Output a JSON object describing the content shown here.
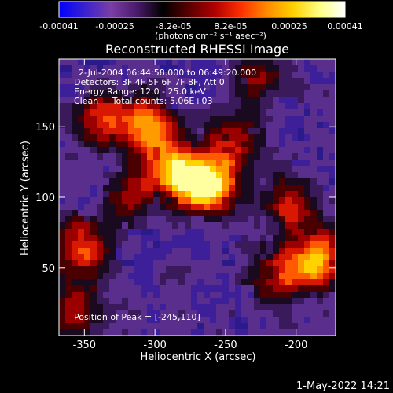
{
  "colorbar": {
    "colors": [
      "#0000ff",
      "#3a22cf",
      "#7a3ea5",
      "#4a1a6a",
      "#000000",
      "#5a0000",
      "#b00000",
      "#ff3000",
      "#ff8a00",
      "#ffd000",
      "#ffff80",
      "#ffffff"
    ],
    "tick_labels": [
      "-0.00041",
      "-0.00025",
      "-8.2e-05",
      "8.2e-05",
      "0.00025",
      "0.00041"
    ],
    "unit_label": "(photons cm⁻² s⁻¹ asec⁻²)"
  },
  "image_panel": {
    "header_lines": [
      "2-Jul-2004 06:44:58.000 to 06:49:20.000",
      "Detectors: 3F 4F 5F 6F 7F 8F, Att 0",
      "Energy Range: 12.0 - 25.0 keV",
      "Clean     Total counts: 5.06E+03"
    ],
    "peak_label": "Position of Peak = [-245,110]"
  },
  "footer": {
    "timestamp": "1-May-2022 14:21"
  },
  "chart_data": {
    "type": "heatmap",
    "title": "Reconstructed RHESSI Image",
    "xlabel": "Heliocentric X (arcsec)",
    "ylabel": "Heliocentric Y (arcsec)",
    "xlim": [
      -368,
      -172
    ],
    "ylim": [
      2,
      198
    ],
    "xticks": [
      -350,
      -300,
      -250,
      -200
    ],
    "yticks": [
      50,
      100,
      150
    ],
    "colorbar_range": [
      -0.00041,
      0.00041
    ],
    "peak_position": [
      -245,
      110
    ],
    "bright_sources": [
      {
        "x": -262,
        "y": 108,
        "amplitude": 1.0
      },
      {
        "x": -287,
        "y": 118,
        "amplitude": 0.75
      },
      {
        "x": -305,
        "y": 150,
        "amplitude": 0.72
      },
      {
        "x": -338,
        "y": 155,
        "amplitude": 0.55
      },
      {
        "x": -185,
        "y": 55,
        "amplitude": 0.78
      },
      {
        "x": -215,
        "y": 45,
        "amplitude": 0.45
      },
      {
        "x": -350,
        "y": 65,
        "amplitude": 0.6
      },
      {
        "x": -245,
        "y": 140,
        "amplitude": 0.45
      },
      {
        "x": -205,
        "y": 95,
        "amplitude": 0.5
      },
      {
        "x": -320,
        "y": 100,
        "amplitude": 0.4
      },
      {
        "x": -355,
        "y": 20,
        "amplitude": 0.45
      },
      {
        "x": -225,
        "y": 185,
        "amplitude": 0.35
      }
    ]
  }
}
